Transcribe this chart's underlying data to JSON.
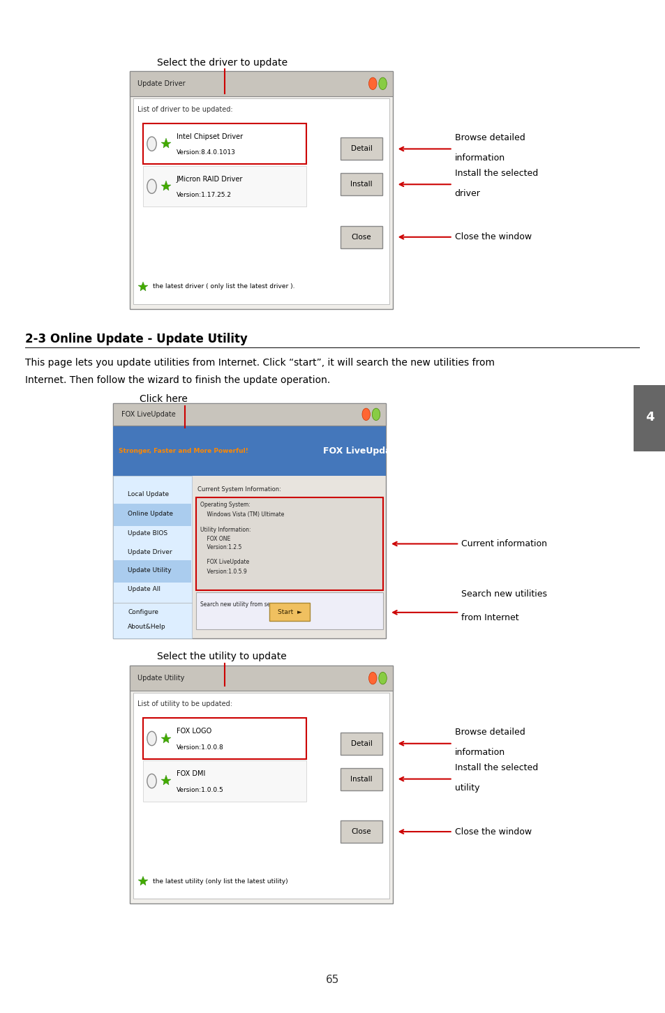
{
  "page_bg": "#ffffff",
  "page_number": "65",
  "tab_color": "#555555",
  "tab_text": "4",
  "section_title": "2-3 Online Update - Update Utility",
  "section_body_line1": "This page lets you update utilities from Internet. Click “start”, it will search the new utilities from",
  "section_body_line2": "Internet. Then follow the wizard to finish the update operation.",
  "label1": "Select the driver to update",
  "label2": "Click here",
  "label3": "Select the utility to update",
  "red": "#cc0000",
  "text_color": "#000000",
  "green_star": "#44aa00",
  "red_border": "#cc0000",
  "page_num_color": "#333333"
}
